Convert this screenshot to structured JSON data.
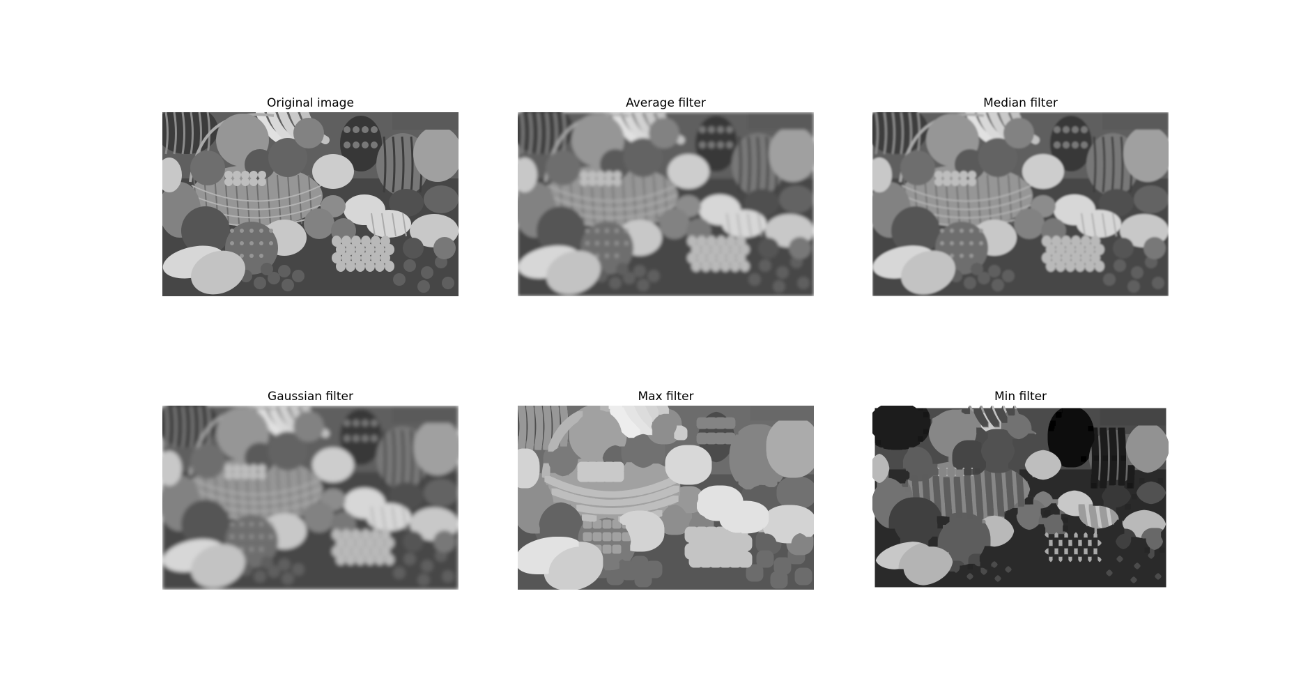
{
  "panels": [
    {
      "title": "Original image",
      "filter": "none"
    },
    {
      "title": "Average filter",
      "filter": "average"
    },
    {
      "title": "Median filter",
      "filter": "median"
    },
    {
      "title": "Gaussian filter",
      "filter": "gaussian"
    },
    {
      "title": "Max filter",
      "filter": "max"
    },
    {
      "title": "Min filter",
      "filter": "min"
    }
  ]
}
